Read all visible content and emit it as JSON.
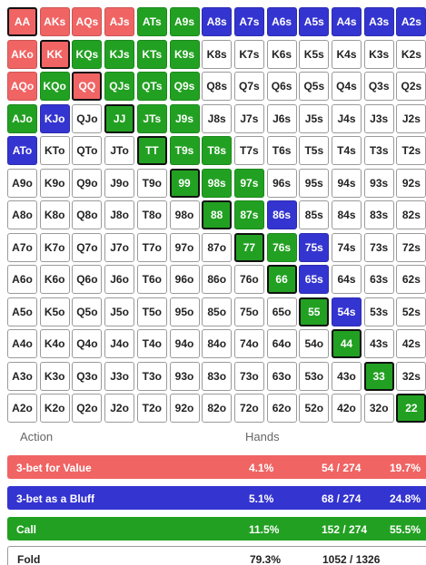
{
  "grid": {
    "rows": [
      [
        {
          "label": "AA",
          "color": "#f06464"
        },
        {
          "label": "AKs",
          "color": "#f06464"
        },
        {
          "label": "AQs",
          "color": "#f06464"
        },
        {
          "label": "AJs",
          "color": "#f06464"
        },
        {
          "label": "ATs",
          "color": "#22a022"
        },
        {
          "label": "A9s",
          "color": "#22a022"
        },
        {
          "label": "A8s",
          "color": "#3434d0"
        },
        {
          "label": "A7s",
          "color": "#3434d0"
        },
        {
          "label": "A6s",
          "color": "#3434d0"
        },
        {
          "label": "A5s",
          "color": "#3434d0"
        },
        {
          "label": "A4s",
          "color": "#3434d0"
        },
        {
          "label": "A3s",
          "color": "#3434d0"
        },
        {
          "label": "A2s",
          "color": "#3434d0"
        }
      ],
      [
        {
          "label": "AKo",
          "color": "#f06464"
        },
        {
          "label": "KK",
          "color": "#f06464"
        },
        {
          "label": "KQs",
          "color": "#22a022"
        },
        {
          "label": "KJs",
          "color": "#22a022"
        },
        {
          "label": "KTs",
          "color": "#22a022"
        },
        {
          "label": "K9s",
          "color": "#22a022"
        },
        {
          "label": "K8s",
          "color": "#ffffff"
        },
        {
          "label": "K7s",
          "color": "#ffffff"
        },
        {
          "label": "K6s",
          "color": "#ffffff"
        },
        {
          "label": "K5s",
          "color": "#ffffff"
        },
        {
          "label": "K4s",
          "color": "#ffffff"
        },
        {
          "label": "K3s",
          "color": "#ffffff"
        },
        {
          "label": "K2s",
          "color": "#ffffff"
        }
      ],
      [
        {
          "label": "AQo",
          "color": "#f06464"
        },
        {
          "label": "KQo",
          "color": "#22a022"
        },
        {
          "label": "QQ",
          "color": "#f06464"
        },
        {
          "label": "QJs",
          "color": "#22a022"
        },
        {
          "label": "QTs",
          "color": "#22a022"
        },
        {
          "label": "Q9s",
          "color": "#22a022"
        },
        {
          "label": "Q8s",
          "color": "#ffffff"
        },
        {
          "label": "Q7s",
          "color": "#ffffff"
        },
        {
          "label": "Q6s",
          "color": "#ffffff"
        },
        {
          "label": "Q5s",
          "color": "#ffffff"
        },
        {
          "label": "Q4s",
          "color": "#ffffff"
        },
        {
          "label": "Q3s",
          "color": "#ffffff"
        },
        {
          "label": "Q2s",
          "color": "#ffffff"
        }
      ],
      [
        {
          "label": "AJo",
          "color": "#22a022"
        },
        {
          "label": "KJo",
          "color": "#3434d0"
        },
        {
          "label": "QJo",
          "color": "#ffffff"
        },
        {
          "label": "JJ",
          "color": "#22a022"
        },
        {
          "label": "JTs",
          "color": "#22a022"
        },
        {
          "label": "J9s",
          "color": "#22a022"
        },
        {
          "label": "J8s",
          "color": "#ffffff"
        },
        {
          "label": "J7s",
          "color": "#ffffff"
        },
        {
          "label": "J6s",
          "color": "#ffffff"
        },
        {
          "label": "J5s",
          "color": "#ffffff"
        },
        {
          "label": "J4s",
          "color": "#ffffff"
        },
        {
          "label": "J3s",
          "color": "#ffffff"
        },
        {
          "label": "J2s",
          "color": "#ffffff"
        }
      ],
      [
        {
          "label": "ATo",
          "color": "#3434d0"
        },
        {
          "label": "KTo",
          "color": "#ffffff"
        },
        {
          "label": "QTo",
          "color": "#ffffff"
        },
        {
          "label": "JTo",
          "color": "#ffffff"
        },
        {
          "label": "TT",
          "color": "#22a022"
        },
        {
          "label": "T9s",
          "color": "#22a022"
        },
        {
          "label": "T8s",
          "color": "#22a022"
        },
        {
          "label": "T7s",
          "color": "#ffffff"
        },
        {
          "label": "T6s",
          "color": "#ffffff"
        },
        {
          "label": "T5s",
          "color": "#ffffff"
        },
        {
          "label": "T4s",
          "color": "#ffffff"
        },
        {
          "label": "T3s",
          "color": "#ffffff"
        },
        {
          "label": "T2s",
          "color": "#ffffff"
        }
      ],
      [
        {
          "label": "A9o",
          "color": "#ffffff"
        },
        {
          "label": "K9o",
          "color": "#ffffff"
        },
        {
          "label": "Q9o",
          "color": "#ffffff"
        },
        {
          "label": "J9o",
          "color": "#ffffff"
        },
        {
          "label": "T9o",
          "color": "#ffffff"
        },
        {
          "label": "99",
          "color": "#22a022"
        },
        {
          "label": "98s",
          "color": "#22a022"
        },
        {
          "label": "97s",
          "color": "#22a022"
        },
        {
          "label": "96s",
          "color": "#ffffff"
        },
        {
          "label": "95s",
          "color": "#ffffff"
        },
        {
          "label": "94s",
          "color": "#ffffff"
        },
        {
          "label": "93s",
          "color": "#ffffff"
        },
        {
          "label": "92s",
          "color": "#ffffff"
        }
      ],
      [
        {
          "label": "A8o",
          "color": "#ffffff"
        },
        {
          "label": "K8o",
          "color": "#ffffff"
        },
        {
          "label": "Q8o",
          "color": "#ffffff"
        },
        {
          "label": "J8o",
          "color": "#ffffff"
        },
        {
          "label": "T8o",
          "color": "#ffffff"
        },
        {
          "label": "98o",
          "color": "#ffffff"
        },
        {
          "label": "88",
          "color": "#22a022"
        },
        {
          "label": "87s",
          "color": "#22a022"
        },
        {
          "label": "86s",
          "color": "#3434d0"
        },
        {
          "label": "85s",
          "color": "#ffffff"
        },
        {
          "label": "84s",
          "color": "#ffffff"
        },
        {
          "label": "83s",
          "color": "#ffffff"
        },
        {
          "label": "82s",
          "color": "#ffffff"
        }
      ],
      [
        {
          "label": "A7o",
          "color": "#ffffff"
        },
        {
          "label": "K7o",
          "color": "#ffffff"
        },
        {
          "label": "Q7o",
          "color": "#ffffff"
        },
        {
          "label": "J7o",
          "color": "#ffffff"
        },
        {
          "label": "T7o",
          "color": "#ffffff"
        },
        {
          "label": "97o",
          "color": "#ffffff"
        },
        {
          "label": "87o",
          "color": "#ffffff"
        },
        {
          "label": "77",
          "color": "#22a022"
        },
        {
          "label": "76s",
          "color": "#22a022"
        },
        {
          "label": "75s",
          "color": "#3434d0"
        },
        {
          "label": "74s",
          "color": "#ffffff"
        },
        {
          "label": "73s",
          "color": "#ffffff"
        },
        {
          "label": "72s",
          "color": "#ffffff"
        }
      ],
      [
        {
          "label": "A6o",
          "color": "#ffffff"
        },
        {
          "label": "K6o",
          "color": "#ffffff"
        },
        {
          "label": "Q6o",
          "color": "#ffffff"
        },
        {
          "label": "J6o",
          "color": "#ffffff"
        },
        {
          "label": "T6o",
          "color": "#ffffff"
        },
        {
          "label": "96o",
          "color": "#ffffff"
        },
        {
          "label": "86o",
          "color": "#ffffff"
        },
        {
          "label": "76o",
          "color": "#ffffff"
        },
        {
          "label": "66",
          "color": "#22a022"
        },
        {
          "label": "65s",
          "color": "#3434d0"
        },
        {
          "label": "64s",
          "color": "#ffffff"
        },
        {
          "label": "63s",
          "color": "#ffffff"
        },
        {
          "label": "62s",
          "color": "#ffffff"
        }
      ],
      [
        {
          "label": "A5o",
          "color": "#ffffff"
        },
        {
          "label": "K5o",
          "color": "#ffffff"
        },
        {
          "label": "Q5o",
          "color": "#ffffff"
        },
        {
          "label": "J5o",
          "color": "#ffffff"
        },
        {
          "label": "T5o",
          "color": "#ffffff"
        },
        {
          "label": "95o",
          "color": "#ffffff"
        },
        {
          "label": "85o",
          "color": "#ffffff"
        },
        {
          "label": "75o",
          "color": "#ffffff"
        },
        {
          "label": "65o",
          "color": "#ffffff"
        },
        {
          "label": "55",
          "color": "#22a022"
        },
        {
          "label": "54s",
          "color": "#3434d0"
        },
        {
          "label": "53s",
          "color": "#ffffff"
        },
        {
          "label": "52s",
          "color": "#ffffff"
        }
      ],
      [
        {
          "label": "A4o",
          "color": "#ffffff"
        },
        {
          "label": "K4o",
          "color": "#ffffff"
        },
        {
          "label": "Q4o",
          "color": "#ffffff"
        },
        {
          "label": "J4o",
          "color": "#ffffff"
        },
        {
          "label": "T4o",
          "color": "#ffffff"
        },
        {
          "label": "94o",
          "color": "#ffffff"
        },
        {
          "label": "84o",
          "color": "#ffffff"
        },
        {
          "label": "74o",
          "color": "#ffffff"
        },
        {
          "label": "64o",
          "color": "#ffffff"
        },
        {
          "label": "54o",
          "color": "#ffffff"
        },
        {
          "label": "44",
          "color": "#22a022"
        },
        {
          "label": "43s",
          "color": "#ffffff"
        },
        {
          "label": "42s",
          "color": "#ffffff"
        }
      ],
      [
        {
          "label": "A3o",
          "color": "#ffffff"
        },
        {
          "label": "K3o",
          "color": "#ffffff"
        },
        {
          "label": "Q3o",
          "color": "#ffffff"
        },
        {
          "label": "J3o",
          "color": "#ffffff"
        },
        {
          "label": "T3o",
          "color": "#ffffff"
        },
        {
          "label": "93o",
          "color": "#ffffff"
        },
        {
          "label": "83o",
          "color": "#ffffff"
        },
        {
          "label": "73o",
          "color": "#ffffff"
        },
        {
          "label": "63o",
          "color": "#ffffff"
        },
        {
          "label": "53o",
          "color": "#ffffff"
        },
        {
          "label": "43o",
          "color": "#ffffff"
        },
        {
          "label": "33",
          "color": "#22a022"
        },
        {
          "label": "32s",
          "color": "#ffffff"
        }
      ],
      [
        {
          "label": "A2o",
          "color": "#ffffff"
        },
        {
          "label": "K2o",
          "color": "#ffffff"
        },
        {
          "label": "Q2o",
          "color": "#ffffff"
        },
        {
          "label": "J2o",
          "color": "#ffffff"
        },
        {
          "label": "T2o",
          "color": "#ffffff"
        },
        {
          "label": "92o",
          "color": "#ffffff"
        },
        {
          "label": "82o",
          "color": "#ffffff"
        },
        {
          "label": "72o",
          "color": "#ffffff"
        },
        {
          "label": "62o",
          "color": "#ffffff"
        },
        {
          "label": "52o",
          "color": "#ffffff"
        },
        {
          "label": "42o",
          "color": "#ffffff"
        },
        {
          "label": "32o",
          "color": "#ffffff"
        },
        {
          "label": "22",
          "color": "#22a022"
        }
      ]
    ]
  },
  "legend": {
    "header": {
      "action": "Action",
      "hands": "Hands"
    },
    "rows": [
      {
        "label": "3-bet for Value",
        "pct": "4.1%",
        "combos": "54 / 274",
        "share": "19.7%",
        "color": "#f06464"
      },
      {
        "label": "3-bet as a Bluff",
        "pct": "5.1%",
        "combos": "68 / 274",
        "share": "24.8%",
        "color": "#3434d0"
      },
      {
        "label": "Call",
        "pct": "11.5%",
        "combos": "152 / 274",
        "share": "55.5%",
        "color": "#22a022"
      },
      {
        "label": "Fold",
        "pct": "79.3%",
        "combos": "1052 / 1326",
        "color": "#ffffff"
      }
    ]
  }
}
